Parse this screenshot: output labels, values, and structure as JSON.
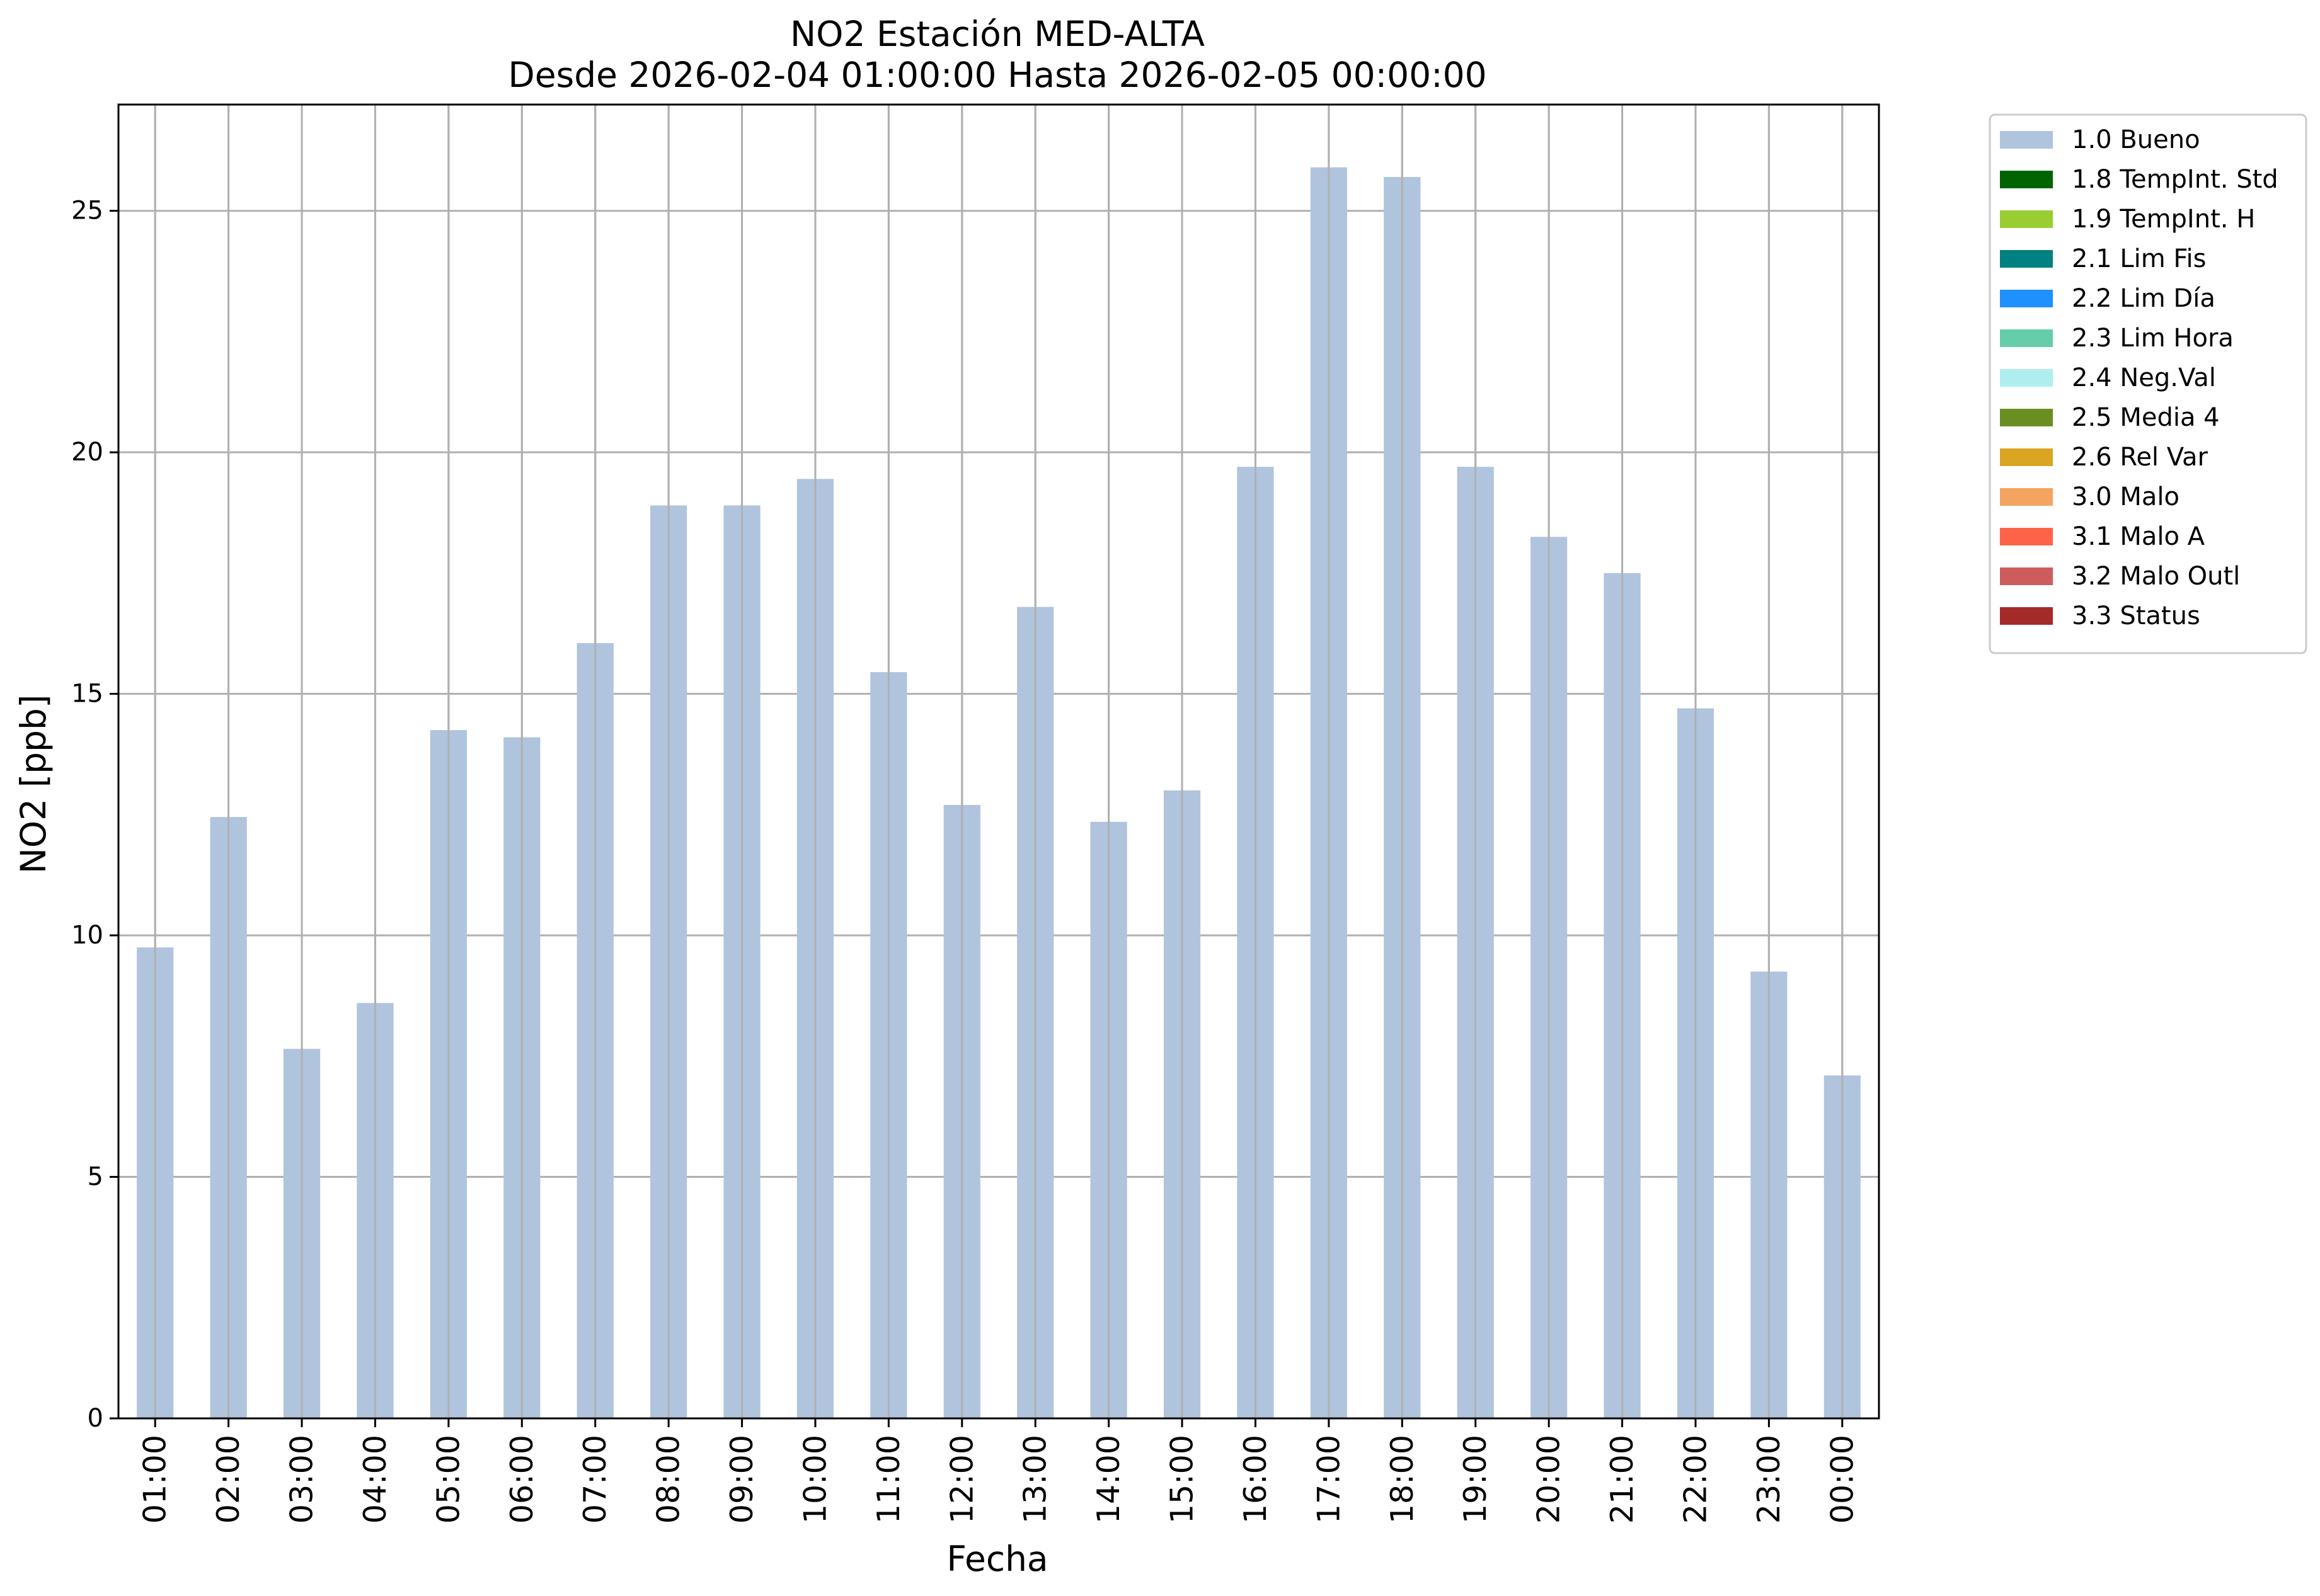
{
  "chart_data": {
    "type": "bar",
    "title": "NO2 Estación MED-ALTA",
    "subtitle": "Desde 2026-02-04 01:00:00 Hasta 2026-02-05 00:00:00",
    "xlabel": "Fecha",
    "ylabel": "NO2 [ppb]",
    "ylim": [
      0,
      27.2
    ],
    "yticks": [
      0,
      5,
      10,
      15,
      20,
      25
    ],
    "grid": true,
    "legend_position": "outside-top-right",
    "categories": [
      "01:00",
      "02:00",
      "03:00",
      "04:00",
      "05:00",
      "06:00",
      "07:00",
      "08:00",
      "09:00",
      "10:00",
      "11:00",
      "12:00",
      "13:00",
      "14:00",
      "15:00",
      "16:00",
      "17:00",
      "18:00",
      "19:00",
      "20:00",
      "21:00",
      "22:00",
      "23:00",
      "00:00"
    ],
    "series": [
      {
        "name": "1.0 Bueno",
        "color": "#b0c4de",
        "values": [
          9.75,
          12.45,
          7.65,
          8.6,
          14.25,
          14.1,
          16.05,
          18.9,
          18.9,
          19.45,
          15.45,
          12.7,
          16.8,
          12.35,
          13.0,
          19.7,
          25.9,
          25.7,
          19.7,
          18.25,
          17.5,
          14.7,
          9.25,
          7.1
        ]
      }
    ],
    "legend": [
      {
        "label": "1.0 Bueno",
        "color": "#b0c4de"
      },
      {
        "label": "1.8 TempInt. Std",
        "color": "#006400"
      },
      {
        "label": "1.9 TempInt. H",
        "color": "#9acd32"
      },
      {
        "label": "2.1 Lim Fis",
        "color": "#008080"
      },
      {
        "label": "2.2 Lim Día",
        "color": "#1e90ff"
      },
      {
        "label": "2.3 Lim Hora",
        "color": "#66cdaa"
      },
      {
        "label": "2.4 Neg.Val",
        "color": "#afeeee"
      },
      {
        "label": "2.5 Media 4",
        "color": "#6b8e23"
      },
      {
        "label": "2.6 Rel Var",
        "color": "#daa520"
      },
      {
        "label": "3.0 Malo",
        "color": "#f4a460"
      },
      {
        "label": "3.1 Malo A",
        "color": "#ff6347"
      },
      {
        "label": "3.2 Malo Outl",
        "color": "#cd5c5c"
      },
      {
        "label": "3.3 Status",
        "color": "#a52a2a"
      }
    ]
  }
}
